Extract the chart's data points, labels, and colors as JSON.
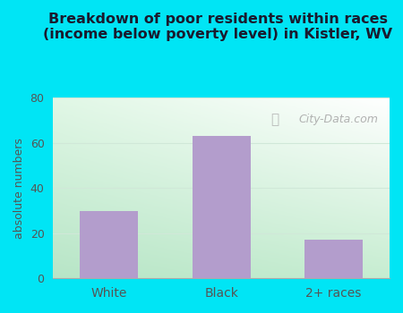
{
  "title": "Breakdown of poor residents within races\n(income below poverty level) in Kistler, WV",
  "categories": [
    "White",
    "Black",
    "2+ races"
  ],
  "values": [
    30,
    63,
    17
  ],
  "bar_color": "#b39dcc",
  "ylabel": "absolute numbers",
  "ylim": [
    0,
    80
  ],
  "yticks": [
    0,
    20,
    40,
    60,
    80
  ],
  "background_outer": "#00e5f5",
  "title_fontsize": 11.5,
  "title_fontweight": "bold",
  "title_color": "#1a1a2e",
  "watermark": "City-Data.com",
  "grad_colors": [
    "#ffffff",
    "#c8ecd4"
  ],
  "grid_color": "#d0e8d8",
  "tick_color": "#555555"
}
